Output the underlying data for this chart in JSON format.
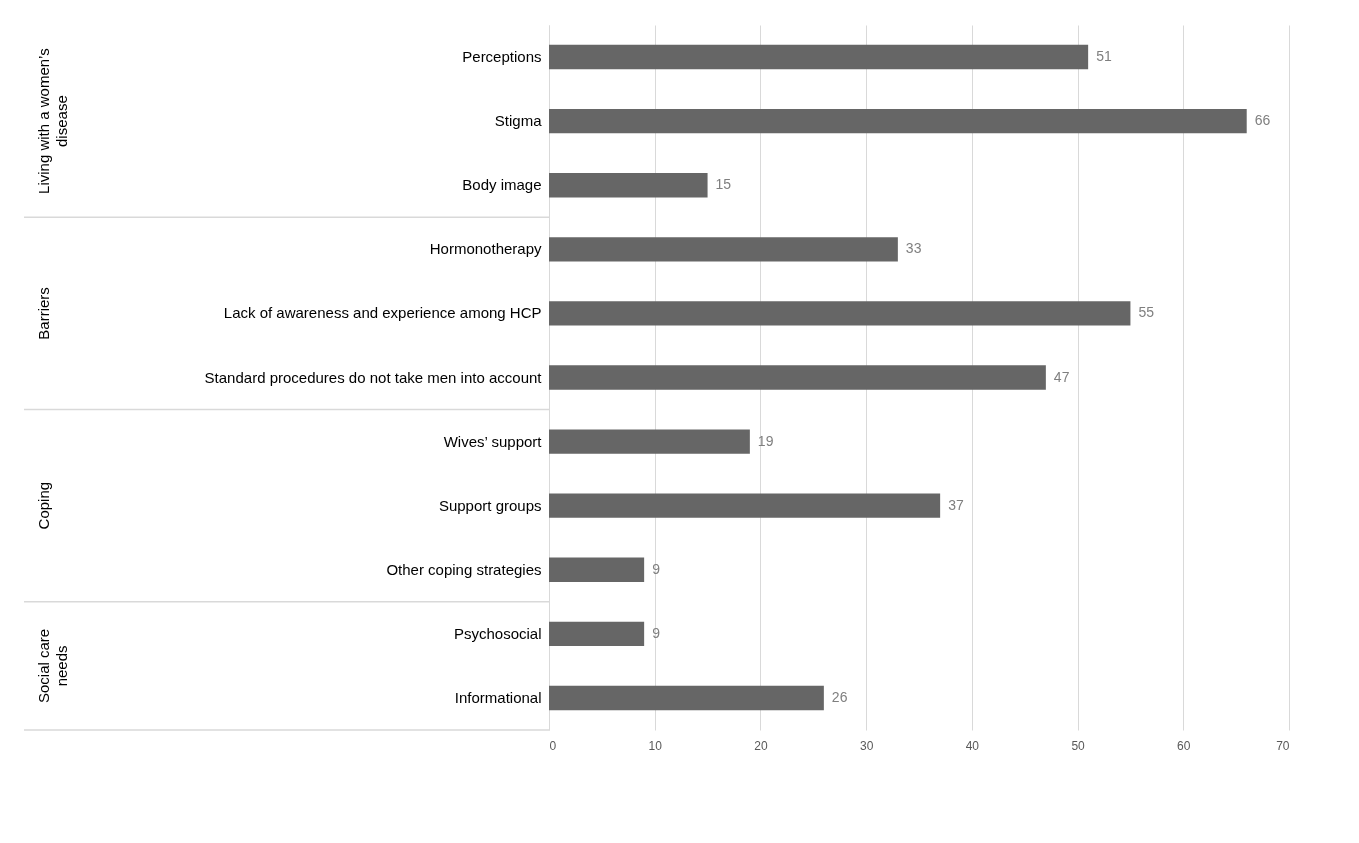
{
  "chart_data": {
    "type": "bar",
    "orientation": "horizontal",
    "categories": [
      "Perceptions",
      "Stigma",
      "Body image",
      "Hormonotherapy",
      "Lack of awareness and experience among HCP",
      "Standard procedures do not take men into account",
      "Wives’ support",
      "Support groups",
      "Other coping strategies",
      "Psychosocial",
      "Informational"
    ],
    "values": [
      51,
      66,
      15,
      33,
      55,
      47,
      19,
      37,
      9,
      9,
      26
    ],
    "color": "#666666",
    "xlim": [
      0,
      70
    ],
    "xticks": [
      0,
      10,
      20,
      30,
      40,
      50,
      60,
      70
    ],
    "grid": "x",
    "data_labels": true,
    "annotations": [
      "Living with a women’s disease",
      "Barriers",
      "Coping",
      "Social care needs"
    ]
  }
}
